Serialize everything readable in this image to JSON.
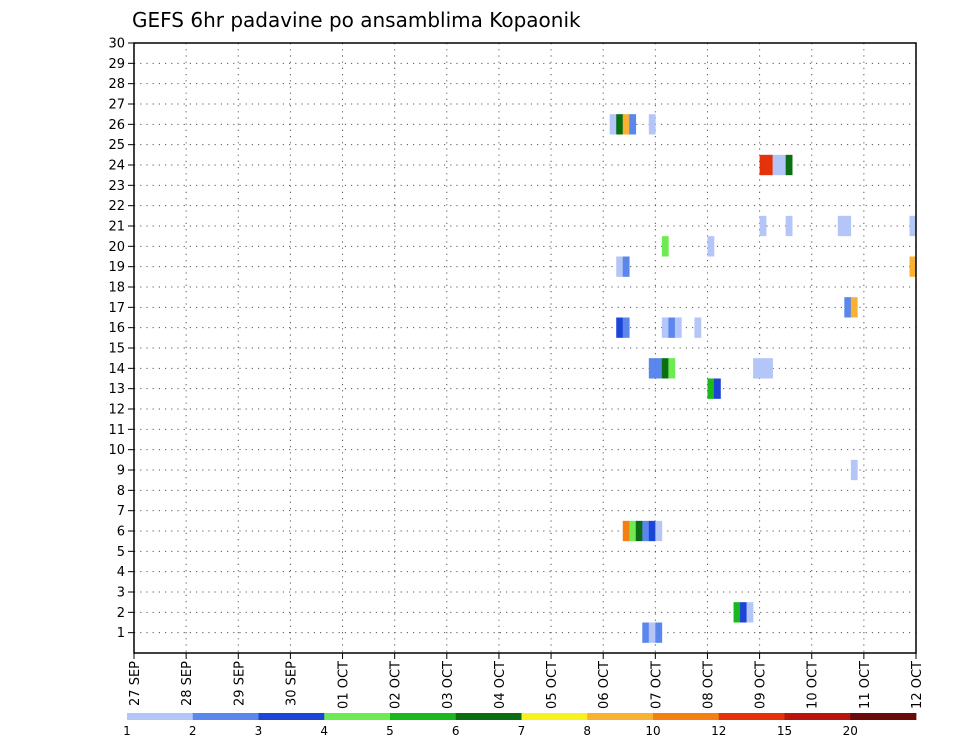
{
  "chart_data": {
    "type": "heatmap",
    "title": "GEFS 6hr padavine po ansamblima Kopaonik",
    "xlabel": "",
    "ylabel": "",
    "x_tick_labels": [
      "27 SEP",
      "28 SEP",
      "29 SEP",
      "30 SEP",
      "01 OCT",
      "02 OCT",
      "03 OCT",
      "04 OCT",
      "05 OCT",
      "06 OCT",
      "07 OCT",
      "08 OCT",
      "09 OCT",
      "10 OCT",
      "11 OCT",
      "12 OCT"
    ],
    "xlim": [
      0,
      60
    ],
    "ylim": [
      0,
      30
    ],
    "y_tick_labels": [
      "1",
      "2",
      "3",
      "4",
      "5",
      "6",
      "7",
      "8",
      "9",
      "10",
      "11",
      "12",
      "13",
      "14",
      "15",
      "16",
      "17",
      "18",
      "19",
      "20",
      "21",
      "22",
      "23",
      "24",
      "25",
      "26",
      "27",
      "28",
      "29",
      "30"
    ],
    "grid": true,
    "colorbar": {
      "colors": [
        "#b3c6f7",
        "#5b86eb",
        "#1c45d6",
        "#6eea52",
        "#19b81c",
        "#0b6e13",
        "#f7f21e",
        "#f8b233",
        "#f57f12",
        "#e5320a",
        "#b8150e",
        "#6c0a0a"
      ],
      "labels": [
        "1",
        "2",
        "3",
        "4",
        "5",
        "6",
        "7",
        "8",
        "10",
        "12",
        "15",
        "20"
      ],
      "legend_position": "bottom"
    },
    "cells": [
      {
        "m": 26,
        "t": 36.75,
        "v": 1
      },
      {
        "m": 26,
        "t": 37.25,
        "v": 6
      },
      {
        "m": 26,
        "t": 37.75,
        "v": 8
      },
      {
        "m": 26,
        "t": 38.25,
        "v": 2
      },
      {
        "m": 26,
        "t": 39.75,
        "v": 1
      },
      {
        "m": 24,
        "t": 48.25,
        "v": 10
      },
      {
        "m": 24,
        "t": 48.75,
        "v": 10
      },
      {
        "m": 24,
        "t": 49.25,
        "v": 1
      },
      {
        "m": 24,
        "t": 49.75,
        "v": 1
      },
      {
        "m": 24,
        "t": 50.25,
        "v": 6
      },
      {
        "m": 21,
        "t": 48.25,
        "v": 1
      },
      {
        "m": 21,
        "t": 50.25,
        "v": 1
      },
      {
        "m": 21,
        "t": 54.25,
        "v": 1
      },
      {
        "m": 21,
        "t": 54.75,
        "v": 1
      },
      {
        "m": 21,
        "t": 59.75,
        "v": 1
      },
      {
        "m": 20,
        "t": 40.75,
        "v": 4
      },
      {
        "m": 20,
        "t": 44.25,
        "v": 1
      },
      {
        "m": 19,
        "t": 37.25,
        "v": 1
      },
      {
        "m": 19,
        "t": 37.75,
        "v": 2
      },
      {
        "m": 19,
        "t": 59.75,
        "v": 8
      },
      {
        "m": 17,
        "t": 54.75,
        "v": 2
      },
      {
        "m": 17,
        "t": 55.25,
        "v": 8
      },
      {
        "m": 16,
        "t": 37.25,
        "v": 3
      },
      {
        "m": 16,
        "t": 37.75,
        "v": 2
      },
      {
        "m": 16,
        "t": 40.75,
        "v": 1
      },
      {
        "m": 16,
        "t": 41.25,
        "v": 2
      },
      {
        "m": 16,
        "t": 41.75,
        "v": 1
      },
      {
        "m": 16,
        "t": 43.25,
        "v": 1
      },
      {
        "m": 14,
        "t": 39.75,
        "v": 2
      },
      {
        "m": 14,
        "t": 40.25,
        "v": 2
      },
      {
        "m": 14,
        "t": 40.75,
        "v": 6
      },
      {
        "m": 14,
        "t": 41.25,
        "v": 4
      },
      {
        "m": 14,
        "t": 47.75,
        "v": 1
      },
      {
        "m": 14,
        "t": 48.25,
        "v": 1
      },
      {
        "m": 14,
        "t": 48.75,
        "v": 1
      },
      {
        "m": 13,
        "t": 44.25,
        "v": 5
      },
      {
        "m": 13,
        "t": 44.75,
        "v": 3
      },
      {
        "m": 9,
        "t": 55.25,
        "v": 1
      },
      {
        "m": 6,
        "t": 37.75,
        "v": 9
      },
      {
        "m": 6,
        "t": 38.25,
        "v": 4
      },
      {
        "m": 6,
        "t": 38.75,
        "v": 6
      },
      {
        "m": 6,
        "t": 39.25,
        "v": 2
      },
      {
        "m": 6,
        "t": 39.75,
        "v": 3
      },
      {
        "m": 6,
        "t": 40.25,
        "v": 1
      },
      {
        "m": 2,
        "t": 46.25,
        "v": 5
      },
      {
        "m": 2,
        "t": 46.75,
        "v": 3
      },
      {
        "m": 2,
        "t": 47.25,
        "v": 1
      },
      {
        "m": 1,
        "t": 39.25,
        "v": 2
      },
      {
        "m": 1,
        "t": 39.75,
        "v": 1
      },
      {
        "m": 1,
        "t": 40.25,
        "v": 2
      }
    ]
  }
}
